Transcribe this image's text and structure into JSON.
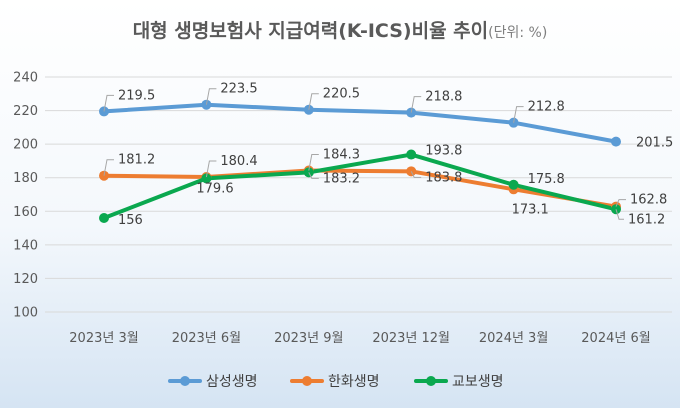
{
  "title": {
    "main": "대형 생명보험사 지급여력(K-ICS)비율 추이",
    "unit": "(단위: %)"
  },
  "chart_data": {
    "type": "line",
    "title": "대형 생명보험사 지급여력(K-ICS)비율 추이",
    "unit": "(단위: %)",
    "categories": [
      "2023년 3월",
      "2023년 6월",
      "2023년 9월",
      "2023년 12월",
      "2024년 3월",
      "2024년 6월"
    ],
    "ylim": [
      100,
      240
    ],
    "yticks": [
      "100",
      "120",
      "140",
      "160",
      "180",
      "200",
      "220",
      "240"
    ],
    "grid": true,
    "legend_position": "bottom",
    "series": [
      {
        "name": "삼성생명",
        "color": "#5b9bd5",
        "values": [
          219.5,
          223.5,
          220.5,
          218.8,
          212.8,
          201.5
        ],
        "labels": [
          "219.5",
          "223.5",
          "220.5",
          "218.8",
          "212.8",
          "201.5"
        ]
      },
      {
        "name": "한화생명",
        "color": "#ed7d31",
        "values": [
          181.2,
          180.4,
          184.3,
          183.8,
          173.1,
          162.8
        ],
        "labels": [
          "181.2",
          "180.4",
          "184.3",
          "183.8",
          "173.1",
          "162.8"
        ]
      },
      {
        "name": "교보생명",
        "color": "#0aa84f",
        "values": [
          156,
          179.6,
          183.2,
          193.8,
          175.8,
          161.2
        ],
        "labels": [
          "156",
          "179.6",
          "183.2",
          "193.8",
          "175.8",
          "161.2"
        ]
      }
    ]
  }
}
